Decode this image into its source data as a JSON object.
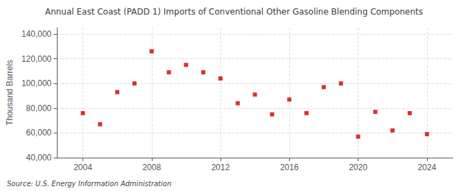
{
  "chart_data": {
    "type": "scatter",
    "title": "Annual East Coast (PADD 1) Imports of Conventional Other Gasoline Blending Components",
    "ylabel": "Thousand Barrels",
    "annotation": "Source: U.S. Energy Information Administration",
    "x": [
      2004,
      2005,
      2006,
      2007,
      2008,
      2009,
      2010,
      2011,
      2012,
      2013,
      2014,
      2015,
      2016,
      2017,
      2018,
      2019,
      2020,
      2021,
      2022,
      2023,
      2024
    ],
    "values": [
      76000,
      67000,
      93000,
      100000,
      126000,
      109000,
      115000,
      109000,
      104000,
      84000,
      91000,
      75000,
      87000,
      76000,
      97000,
      100000,
      57000,
      77000,
      62000,
      76000,
      59000
    ],
    "color": "#cc0000",
    "marker": "square",
    "xlim": [
      2002.5,
      2025.5
    ],
    "xticks": [
      2004,
      2008,
      2012,
      2016,
      2020,
      2024
    ],
    "ylim": [
      40000,
      145000
    ],
    "yticks": [
      {
        "value": 40000,
        "label": "40,000"
      },
      {
        "value": 60000,
        "label": "60,000"
      },
      {
        "value": 80000,
        "label": "80,000"
      },
      {
        "value": 100000,
        "label": "100,000"
      },
      {
        "value": 120000,
        "label": "120,000"
      },
      {
        "value": 140000,
        "label": "140,000"
      }
    ],
    "grid": true
  }
}
